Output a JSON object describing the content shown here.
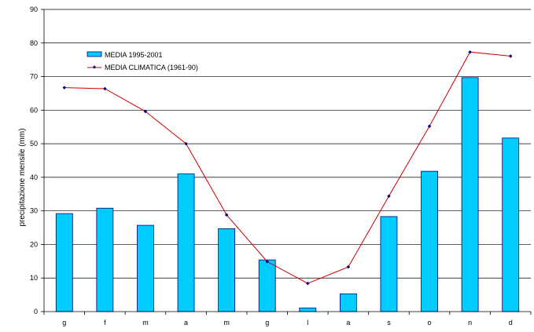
{
  "chart_data": {
    "type": "bar",
    "categories": [
      "g",
      "f",
      "m",
      "a",
      "m",
      "g",
      "l",
      "a",
      "s",
      "o",
      "n",
      "d"
    ],
    "series": [
      {
        "name": "MEDIA 1995-2001",
        "type": "bar",
        "color": "#00ccff",
        "values": [
          29.2,
          30.8,
          25.7,
          41.0,
          24.7,
          15.4,
          1.1,
          5.3,
          28.3,
          41.8,
          69.7,
          51.7
        ]
      },
      {
        "name": "MEDIA CLIMATICA (1961-90)",
        "type": "line",
        "color": "#cc0000",
        "marker_color": "#000080",
        "values": [
          66.7,
          66.4,
          59.6,
          50.0,
          28.8,
          14.9,
          8.4,
          13.3,
          34.4,
          55.2,
          77.3,
          76.1
        ]
      }
    ],
    "ylabel": "precipitazione mensile (mm)",
    "xlabel": "",
    "ylim": [
      0,
      90
    ],
    "yticks": [
      0,
      10,
      20,
      30,
      40,
      50,
      60,
      70,
      80,
      90
    ],
    "grid": true,
    "legend_position": "top-left"
  }
}
